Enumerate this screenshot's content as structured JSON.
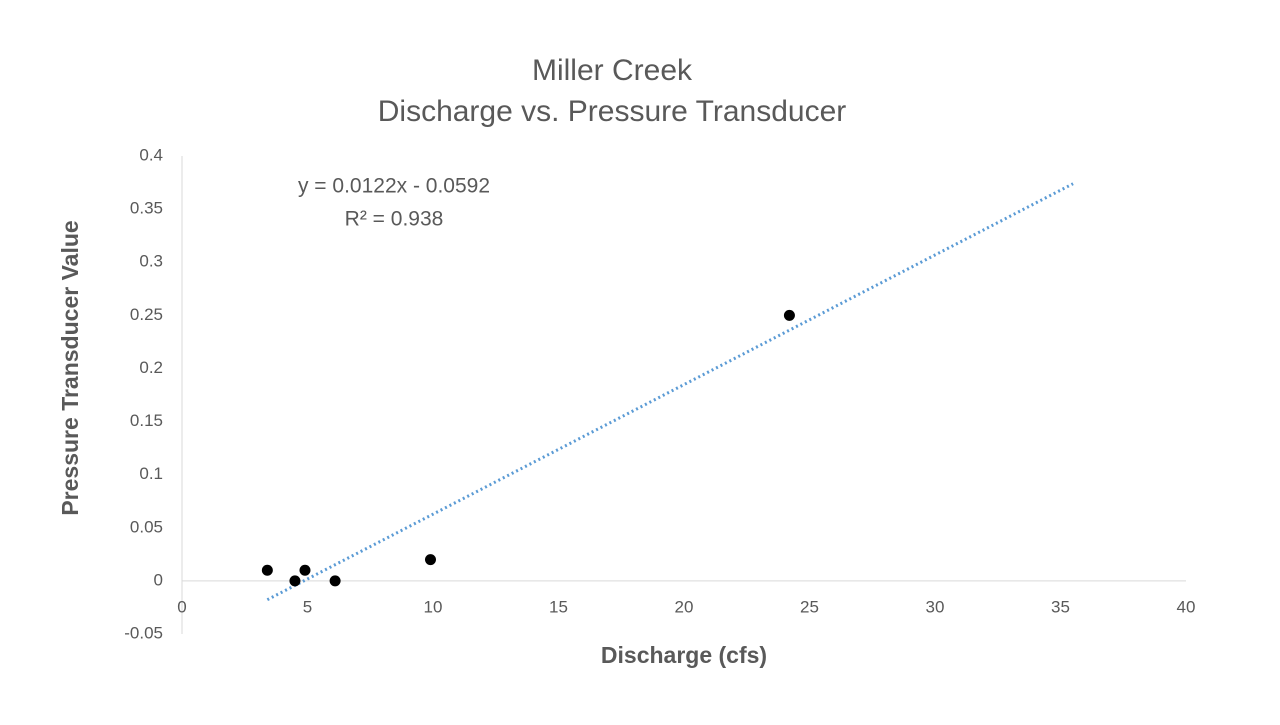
{
  "chart_data": {
    "type": "scatter",
    "title": [
      "Miller Creek",
      "Discharge vs. Pressure Transducer"
    ],
    "x_label": "Discharge (cfs)",
    "y_label": "Pressure Transducer Value",
    "series": [
      {
        "name": "Pressure Transducer Value",
        "color": "#000000",
        "x": [
          3.4,
          4.5,
          4.9,
          6.1,
          9.9,
          24.2
        ],
        "values": [
          0.01,
          0,
          0.01,
          0,
          0.02,
          0.25
        ]
      }
    ],
    "trendline": {
      "equation": "y = 0.0122x - 0.0592",
      "r_squared": "R² = 0.938",
      "slope": 0.0122,
      "intercept": -0.0592,
      "x": [
        3.4,
        35.5
      ],
      "color": "#5b9bd5"
    },
    "xlim": [
      0,
      40
    ],
    "xticks": [
      0,
      5,
      10,
      15,
      20,
      25,
      30,
      35,
      40
    ],
    "ylim": [
      -0.05,
      0.4
    ],
    "yticks": [
      -0.05,
      0,
      0.05,
      0.1,
      0.15,
      0.2,
      0.25,
      0.3,
      0.35,
      0.4
    ],
    "grid": false
  }
}
